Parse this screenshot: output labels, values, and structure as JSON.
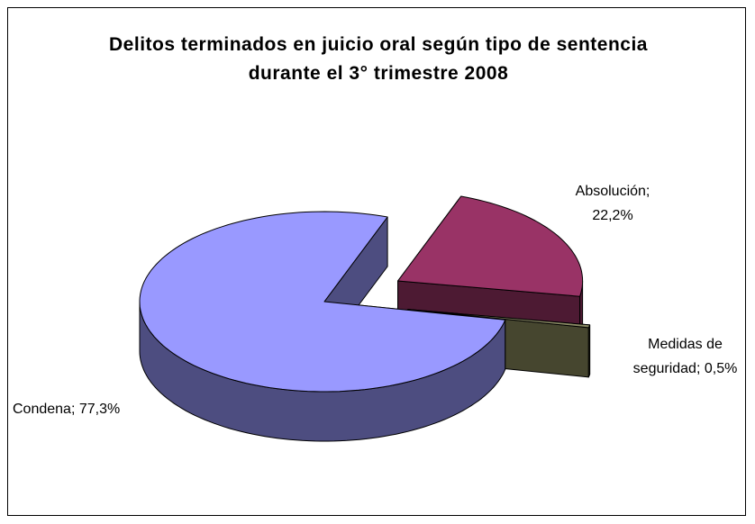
{
  "chart_data": {
    "type": "pie3d",
    "title": "Delitos terminados en juicio oral según tipo de sentencia durante el 3° trimestre 2008",
    "categories": [
      "Absolución;",
      "Medidas de seguridad;",
      "Condena;"
    ],
    "values": [
      22.2,
      0.5,
      77.3
    ],
    "value_labels": [
      "22,2%",
      "0,5%",
      "77,3%"
    ],
    "colors": [
      "#993366",
      "#8c8c66",
      "#9999ff"
    ],
    "side_colors": [
      "#4d1a33",
      "#46462f",
      "#4d4d80"
    ],
    "exploded": [
      true,
      true,
      false
    ]
  }
}
